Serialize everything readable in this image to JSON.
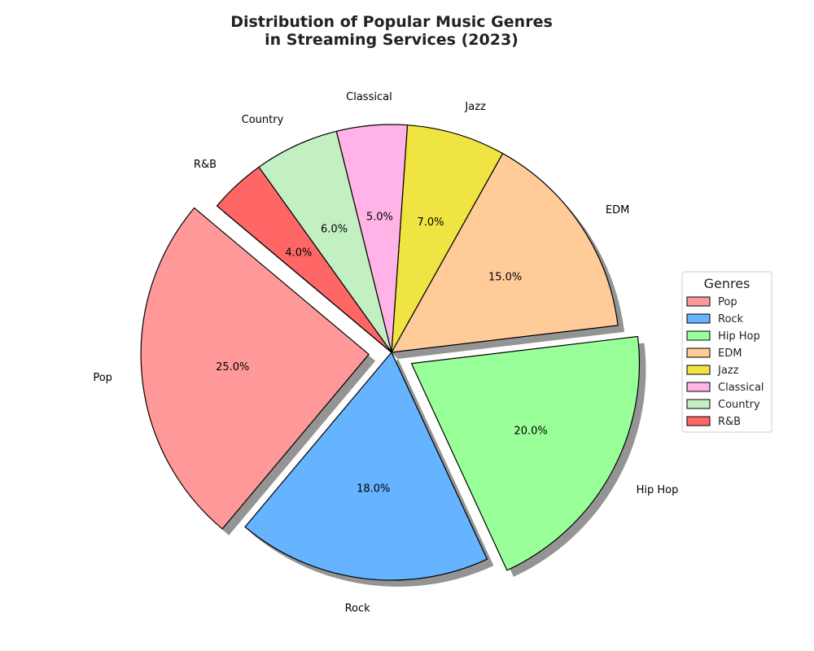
{
  "chart_data": {
    "type": "pie",
    "title_lines": [
      "Distribution of Popular Music Genres",
      "in Streaming Services (2023)"
    ],
    "categories": [
      "Pop",
      "Rock",
      "Hip Hop",
      "EDM",
      "Jazz",
      "Classical",
      "Country",
      "R&B"
    ],
    "values": [
      25.0,
      18.0,
      20.0,
      15.0,
      7.0,
      5.0,
      6.0,
      4.0
    ],
    "value_labels": [
      "25.0%",
      "18.0%",
      "20.0%",
      "15.0%",
      "7.0%",
      "5.0%",
      "6.0%",
      "4.0%"
    ],
    "colors": [
      "#ff9999",
      "#66b3ff",
      "#99ff99",
      "#ffcc99",
      "#f0e442",
      "#ffb3e6",
      "#c2f0c2",
      "#ff6666"
    ],
    "exploded": [
      "Pop",
      "Hip Hop"
    ],
    "start_angle_deg": 140,
    "direction": "counterclockwise",
    "shadow": true,
    "legend": {
      "title": "Genres",
      "placement": "center-right",
      "entries": [
        "Pop",
        "Rock",
        "Hip Hop",
        "EDM",
        "Jazz",
        "Classical",
        "Country",
        "R&B"
      ]
    }
  }
}
